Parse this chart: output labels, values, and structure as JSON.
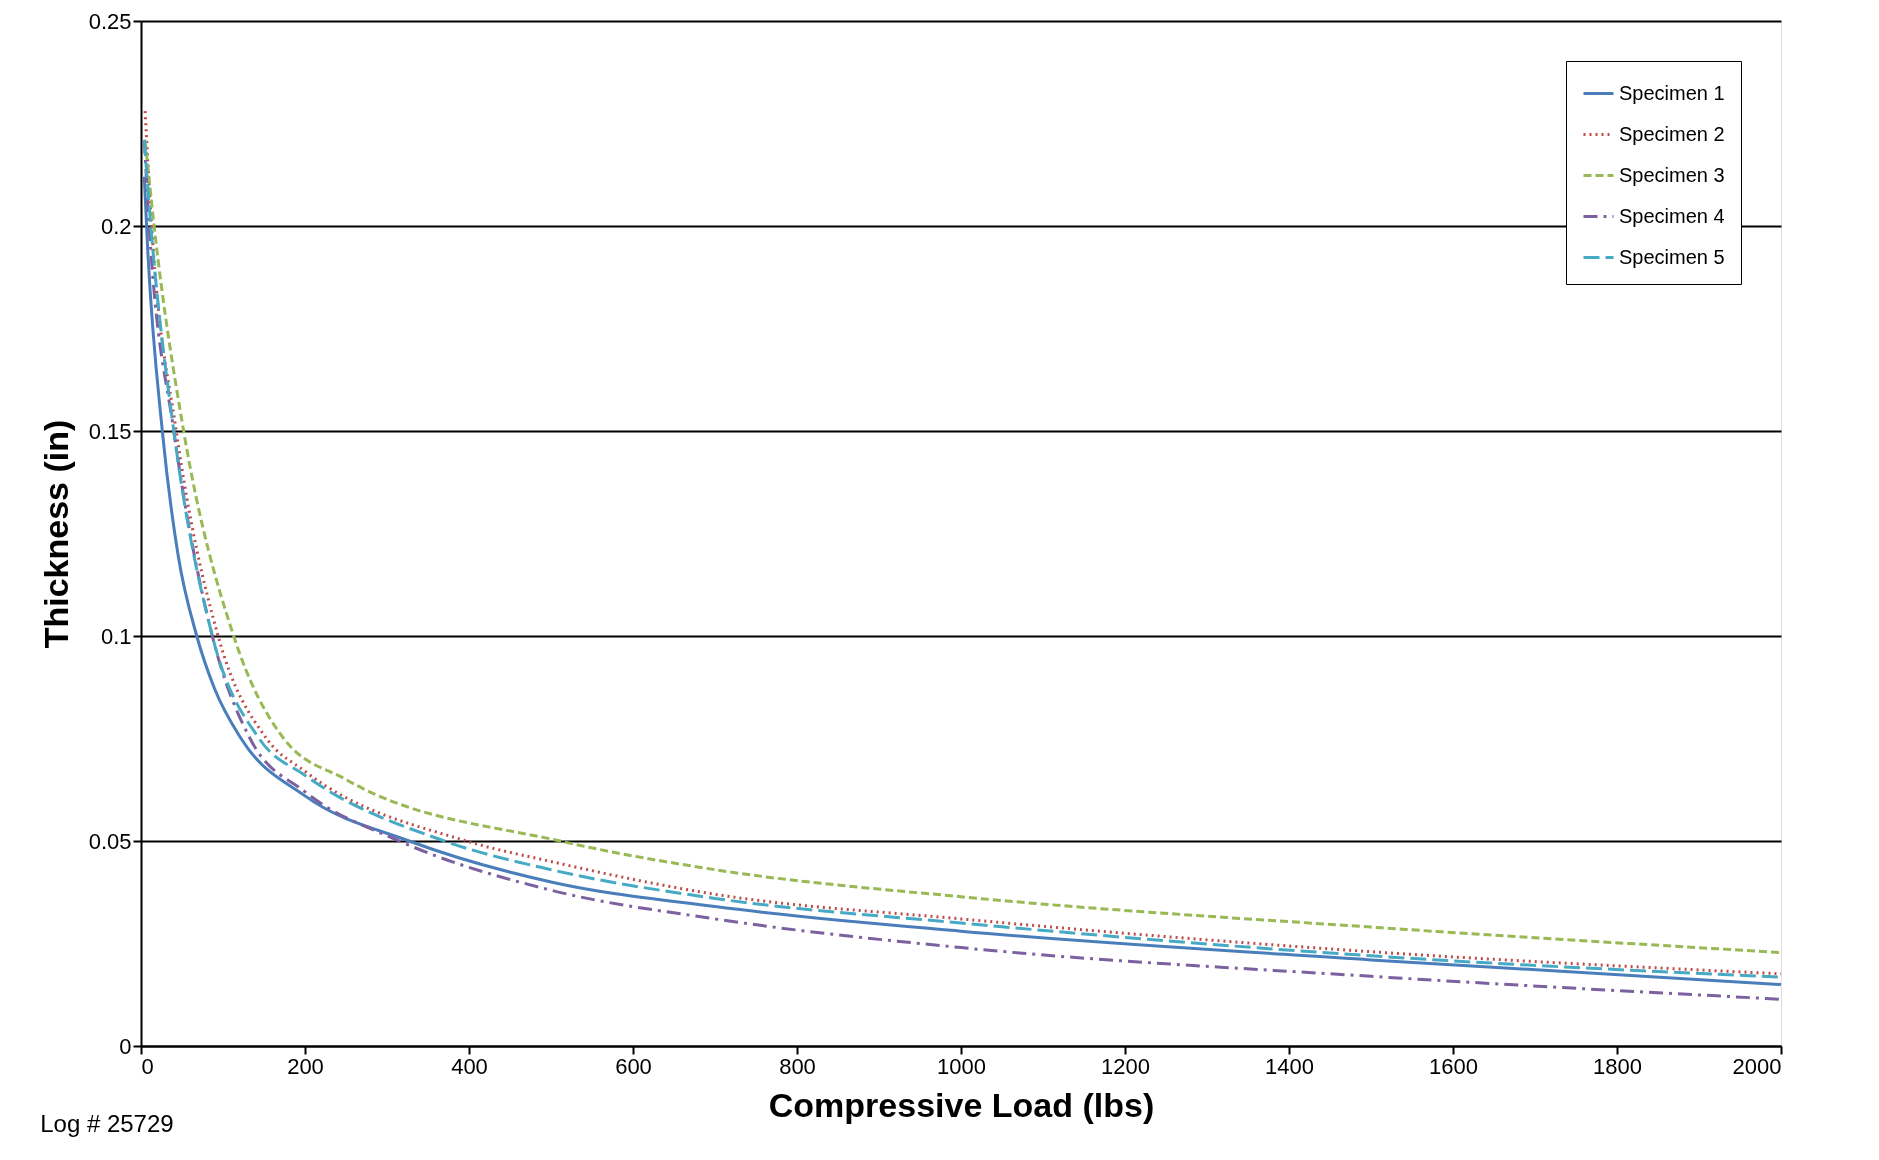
{
  "chart_data": {
    "type": "line",
    "xlabel": "Compressive Load (lbs)",
    "ylabel": "Thickness (in)",
    "xlim": [
      0,
      2000
    ],
    "xticks": [
      0,
      200,
      400,
      600,
      800,
      1000,
      1200,
      1400,
      1600,
      1800,
      2000
    ],
    "ylim": [
      0,
      0.25
    ],
    "yticks": [
      0,
      0.05,
      0.1,
      0.15,
      0.2,
      0.25
    ],
    "grid": "y",
    "legend": "top right",
    "marker": "none",
    "annotations": [
      "Log # 25729"
    ],
    "series": [
      {
        "name": "Specimen 1",
        "color": "#4a7ebb",
        "line_style": "solid",
        "x": [
          4,
          8,
          26,
          45,
          68,
          90,
          122,
          200,
          327,
          500,
          700,
          1000,
          1500,
          2000
        ],
        "values": [
          0.212,
          0.195,
          0.15,
          0.12,
          0.1,
          0.087,
          0.075,
          0.061,
          0.05,
          0.04,
          0.034,
          0.028,
          0.021,
          0.015
        ]
      },
      {
        "name": "Specimen 2",
        "color": "#be4b48",
        "line_style": "dotted",
        "x": [
          5,
          13,
          43,
          94,
          153,
          200,
          397,
          500,
          700,
          1000,
          1500,
          2000
        ],
        "values": [
          0.228,
          0.2,
          0.15,
          0.1,
          0.075,
          0.067,
          0.05,
          0.045,
          0.037,
          0.031,
          0.023,
          0.0176
        ]
      },
      {
        "name": "Specimen 3",
        "color": "#98b954",
        "line_style": "dashed",
        "x": [
          5,
          16,
          52,
          113,
          174,
          250,
          511,
          700,
          1000,
          1500,
          2000
        ],
        "values": [
          0.221,
          0.2,
          0.15,
          0.1,
          0.075,
          0.065,
          0.05,
          0.043,
          0.0364,
          0.029,
          0.0228
        ]
      },
      {
        "name": "Specimen 4",
        "color": "#7d60a0",
        "line_style": "dashdot",
        "x": [
          4,
          10,
          40,
          87,
          133,
          200,
          315,
          500,
          700,
          1000,
          1500,
          2000
        ],
        "values": [
          0.221,
          0.2,
          0.15,
          0.1,
          0.075,
          0.062,
          0.05,
          0.038,
          0.031,
          0.024,
          0.017,
          0.0114
        ]
      },
      {
        "name": "Specimen 5",
        "color": "#46aac5",
        "line_style": "longdash",
        "x": [
          4,
          12,
          40,
          87,
          144,
          200,
          370,
          500,
          700,
          1000,
          1500,
          2000
        ],
        "values": [
          0.221,
          0.2,
          0.15,
          0.1,
          0.075,
          0.066,
          0.05,
          0.043,
          0.036,
          0.03,
          0.022,
          0.0168
        ]
      }
    ]
  }
}
